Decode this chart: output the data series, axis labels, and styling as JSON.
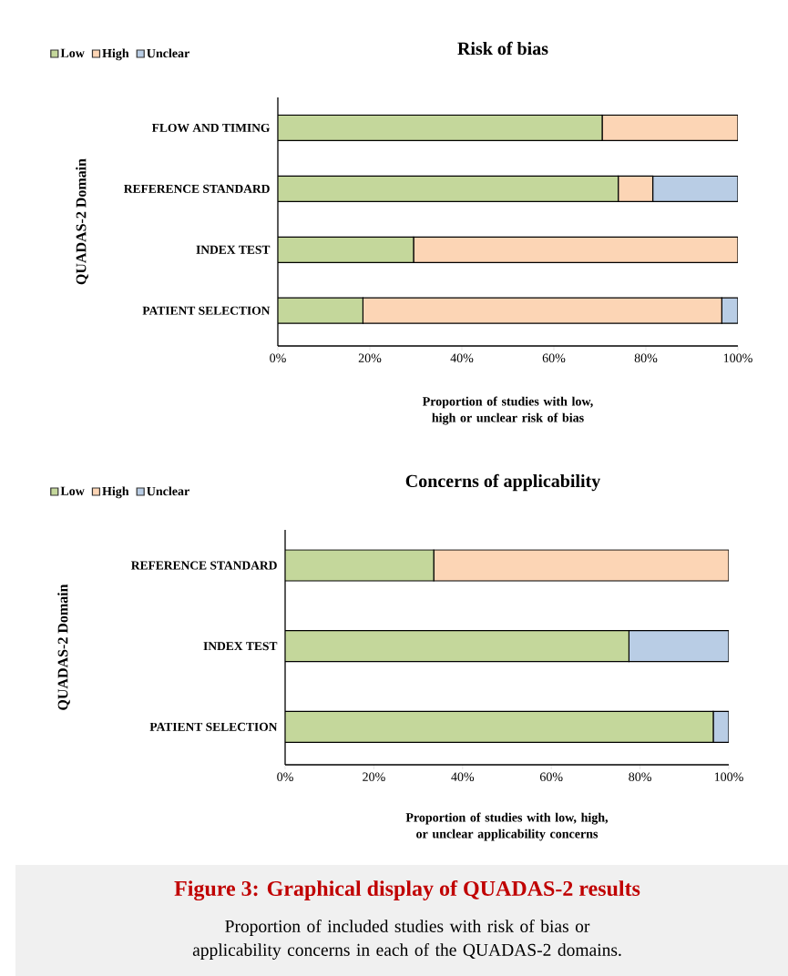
{
  "chart_data": [
    {
      "type": "bar",
      "orientation": "horizontal",
      "stacked": true,
      "title": "Risk of bias",
      "xlabel": "Proportion of studies with low, high or unclear risk of bias",
      "ylabel": "QUADAS-2 Domain",
      "categories": [
        "FLOW AND TIMING",
        "REFERENCE STANDARD",
        "INDEX TEST",
        "PATIENT SELECTION"
      ],
      "series": [
        {
          "name": "Low",
          "color": "#c4d79b",
          "values": [
            70.5,
            74,
            29.5,
            18.5
          ]
        },
        {
          "name": "High",
          "color": "#fcd5b5",
          "values": [
            29.5,
            7.5,
            70.5,
            78
          ]
        },
        {
          "name": "Unclear",
          "color": "#b9cde5",
          "values": [
            null,
            18.5,
            null,
            3.5
          ]
        }
      ],
      "xlim": [
        0,
        100
      ],
      "xticks": [
        {
          "value": 0,
          "label": "0%"
        },
        {
          "value": 20,
          "label": "20%"
        },
        {
          "value": 40,
          "label": "40%"
        },
        {
          "value": 60,
          "label": "60%"
        },
        {
          "value": 80,
          "label": "80%"
        },
        {
          "value": 100,
          "label": "100%"
        }
      ],
      "legend": "top left"
    },
    {
      "type": "bar",
      "orientation": "horizontal",
      "stacked": true,
      "title": "Concerns of applicability",
      "xlabel": "Proportion of studies with low, high, or unclear applicability concerns",
      "ylabel": "QUADAS-2 Domain",
      "categories": [
        "REFERENCE STANDARD",
        "INDEX TEST",
        "PATIENT SELECTION"
      ],
      "series": [
        {
          "name": "Low",
          "color": "#c4d79b",
          "values": [
            33.5,
            77.5,
            96.5
          ]
        },
        {
          "name": "High",
          "color": "#fcd5b5",
          "values": [
            66.5,
            null,
            null
          ]
        },
        {
          "name": "Unclear",
          "color": "#b9cde5",
          "values": [
            null,
            22.5,
            3.5
          ]
        }
      ],
      "xlim": [
        0,
        100
      ],
      "xticks": [
        {
          "value": 0,
          "label": "0%"
        },
        {
          "value": 20,
          "label": "20%"
        },
        {
          "value": 40,
          "label": "40%"
        },
        {
          "value": 60,
          "label": "60%"
        },
        {
          "value": 80,
          "label": "80%"
        },
        {
          "value": 100,
          "label": "100%"
        }
      ],
      "legend": "top left",
      "annotations": [
        "Figure 3: Graphical display of QUADAS-2 results",
        "Proportion of included studies with risk of bias or applicability concerns in each of the QUADAS-2 domains."
      ]
    }
  ]
}
